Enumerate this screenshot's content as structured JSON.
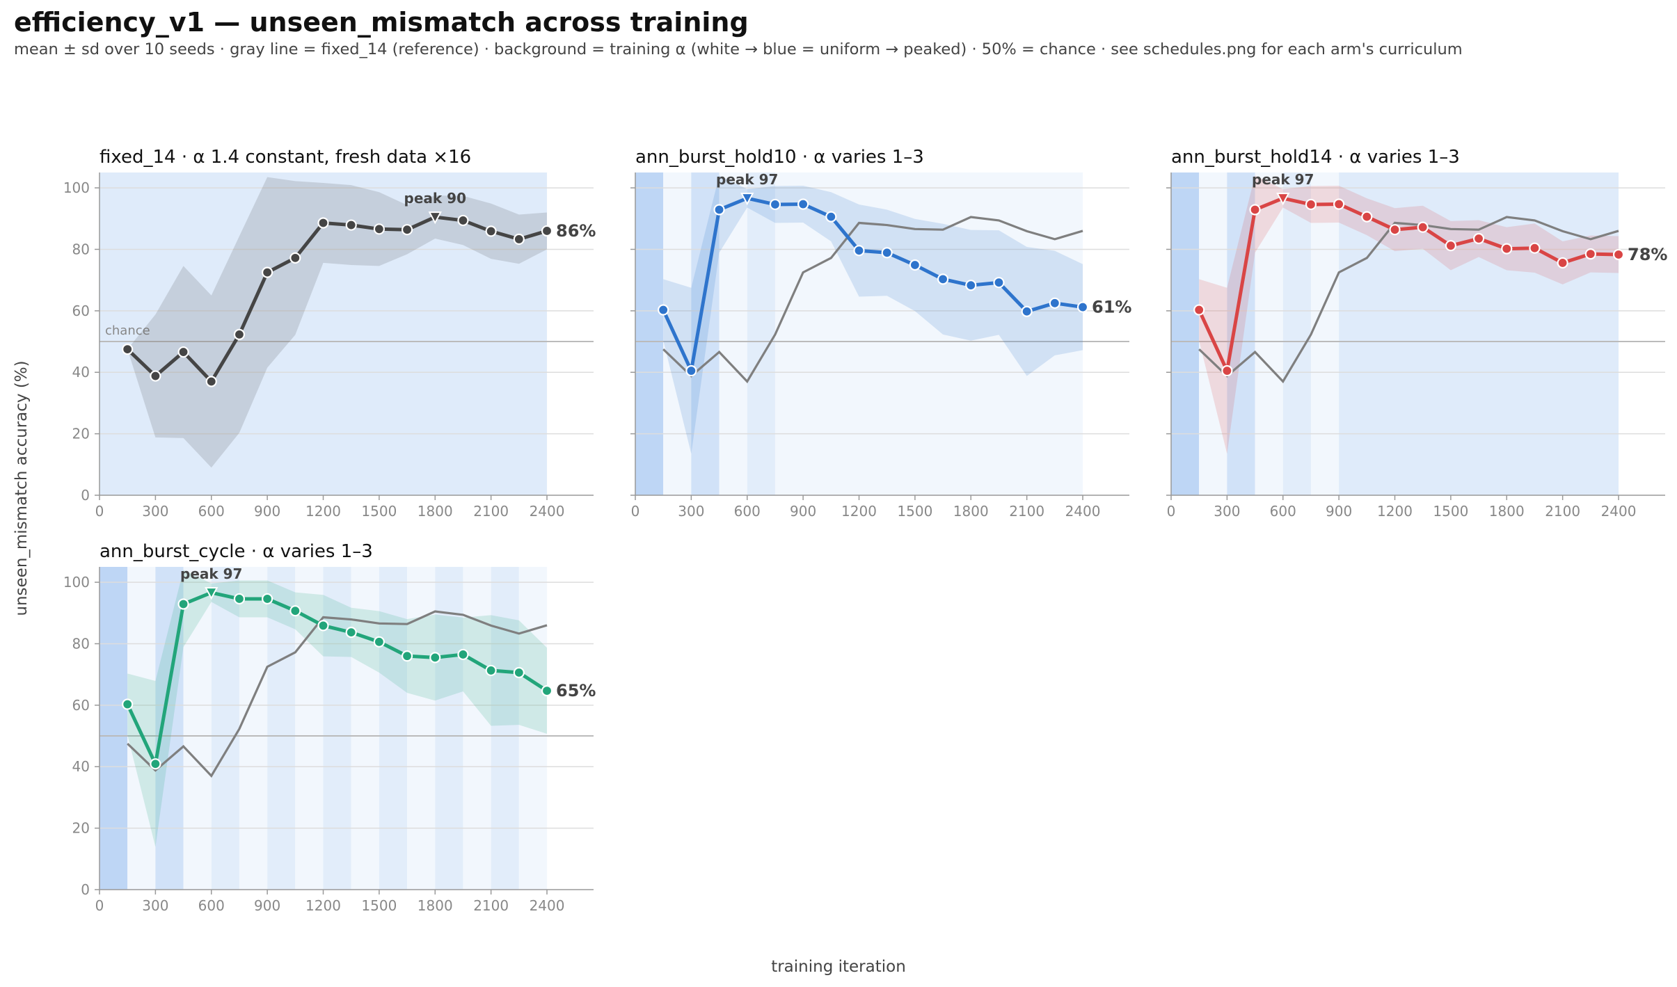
{
  "figure": {
    "title": "efficiency_v1 — unseen_mismatch across training",
    "subtitle": "mean ± sd over 10 seeds · gray line = fixed_14 (reference) · background = training α (white → blue = uniform → peaked) · 50% = chance · see schedules.png for each arm's curriculum",
    "xlabel": "training iteration",
    "ylabel": "unseen_mismatch accuracy (%)",
    "chance_label": "chance"
  },
  "colors": {
    "reference": "#7f7f7f",
    "fixed": "#454545",
    "hold10": "#2e74cc",
    "hold14": "#d94545",
    "cycle": "#22a57a",
    "grid": "#dddddd",
    "axis": "#999999",
    "tick_text": "#888888",
    "chance_line": "#bbbbbb"
  },
  "chart_data": [
    {
      "type": "line",
      "panel": "fixed_14",
      "title": "fixed_14   ·   α 1.4 constant, fresh data ×16",
      "x": [
        150,
        300,
        450,
        600,
        750,
        900,
        1050,
        1200,
        1350,
        1500,
        1650,
        1800,
        1950,
        2100,
        2250,
        2400
      ],
      "xticks": [
        0,
        300,
        600,
        900,
        1200,
        1500,
        1800,
        2100,
        2400
      ],
      "yticks": [
        0,
        20,
        40,
        60,
        80,
        100
      ],
      "xlim": [
        0,
        2650
      ],
      "ylim": [
        0,
        105
      ],
      "chance": 50,
      "series": [
        {
          "mean": [
            47.5,
            38.8,
            46.6,
            37.0,
            52.3,
            72.5,
            77.2,
            88.6,
            87.9,
            86.6,
            86.4,
            90.5,
            89.4,
            85.9,
            83.3,
            86.0
          ],
          "sd": [
            0,
            20,
            28,
            28,
            32,
            31,
            25,
            13,
            13,
            12,
            8,
            7,
            8,
            9,
            8,
            6
          ]
        }
      ],
      "reference": null,
      "peak_label": "peak 90",
      "final_label": "86%",
      "alpha_bands": [
        {
          "from": 0,
          "to": 2400,
          "level": 0.5
        }
      ]
    },
    {
      "type": "line",
      "panel": "ann_burst_hold10",
      "title": "ann_burst_hold10   ·   α varies 1–3",
      "x": [
        150,
        300,
        450,
        600,
        750,
        900,
        1050,
        1200,
        1350,
        1500,
        1650,
        1800,
        1950,
        2100,
        2250,
        2400
      ],
      "xticks": [
        0,
        300,
        600,
        900,
        1200,
        1500,
        1800,
        2100,
        2400
      ],
      "yticks": [
        0,
        20,
        40,
        60,
        80,
        100
      ],
      "xlim": [
        0,
        2650
      ],
      "ylim": [
        0,
        105
      ],
      "chance": 50,
      "series": [
        {
          "mean": [
            60.3,
            40.5,
            92.9,
            96.6,
            94.6,
            94.7,
            90.6,
            79.6,
            78.9,
            74.9,
            70.3,
            68.3,
            69.2,
            59.8,
            62.5,
            61.2
          ],
          "sd": [
            10,
            27,
            14,
            3,
            6,
            6,
            8,
            15,
            14,
            15,
            18,
            18,
            17,
            21,
            17,
            14
          ]
        }
      ],
      "reference": [
        47.5,
        38.8,
        46.6,
        37.0,
        52.3,
        72.5,
        77.2,
        88.6,
        87.9,
        86.6,
        86.4,
        90.5,
        89.4,
        85.9,
        83.3,
        86.0
      ],
      "peak_label": "peak 97",
      "final_label": "61%",
      "alpha_bands": [
        {
          "from": 0,
          "to": 150,
          "level": 1.0
        },
        {
          "from": 150,
          "to": 300,
          "level": 0.2
        },
        {
          "from": 300,
          "to": 450,
          "level": 0.7
        },
        {
          "from": 450,
          "to": 600,
          "level": 0.2
        },
        {
          "from": 600,
          "to": 750,
          "level": 0.45
        },
        {
          "from": 750,
          "to": 2400,
          "level": 0.2
        }
      ]
    },
    {
      "type": "line",
      "panel": "ann_burst_hold14",
      "title": "ann_burst_hold14   ·   α varies 1–3",
      "x": [
        150,
        300,
        450,
        600,
        750,
        900,
        1050,
        1200,
        1350,
        1500,
        1650,
        1800,
        1950,
        2100,
        2250,
        2400
      ],
      "xticks": [
        0,
        300,
        600,
        900,
        1200,
        1500,
        1800,
        2100,
        2400
      ],
      "yticks": [
        0,
        20,
        40,
        60,
        80,
        100
      ],
      "xlim": [
        0,
        2650
      ],
      "ylim": [
        0,
        105
      ],
      "chance": 50,
      "series": [
        {
          "mean": [
            60.3,
            40.5,
            92.9,
            96.6,
            94.6,
            94.7,
            90.6,
            86.4,
            87.2,
            81.2,
            83.5,
            80.2,
            80.4,
            75.6,
            78.5,
            78.3
          ],
          "sd": [
            10,
            27,
            14,
            3,
            6,
            6,
            6,
            7,
            7,
            8,
            6,
            7,
            8,
            7,
            6,
            6
          ]
        }
      ],
      "reference": [
        47.5,
        38.8,
        46.6,
        37.0,
        52.3,
        72.5,
        77.2,
        88.6,
        87.9,
        86.6,
        86.4,
        90.5,
        89.4,
        85.9,
        83.3,
        86.0
      ],
      "peak_label": "peak 97",
      "final_label": "78%",
      "alpha_bands": [
        {
          "from": 0,
          "to": 150,
          "level": 1.0
        },
        {
          "from": 150,
          "to": 300,
          "level": 0.2
        },
        {
          "from": 300,
          "to": 450,
          "level": 0.7
        },
        {
          "from": 450,
          "to": 600,
          "level": 0.2
        },
        {
          "from": 600,
          "to": 750,
          "level": 0.45
        },
        {
          "from": 750,
          "to": 900,
          "level": 0.2
        },
        {
          "from": 900,
          "to": 2400,
          "level": 0.5
        }
      ]
    },
    {
      "type": "line",
      "panel": "ann_burst_cycle",
      "title": "ann_burst_cycle   ·   α varies 1–3",
      "x": [
        150,
        300,
        450,
        600,
        750,
        900,
        1050,
        1200,
        1350,
        1500,
        1650,
        1800,
        1950,
        2100,
        2250,
        2400
      ],
      "xticks": [
        0,
        300,
        600,
        900,
        1200,
        1500,
        1800,
        2100,
        2400
      ],
      "yticks": [
        0,
        20,
        40,
        60,
        80,
        100
      ],
      "xlim": [
        0,
        2650
      ],
      "ylim": [
        0,
        105
      ],
      "chance": 50,
      "series": [
        {
          "mean": [
            60.3,
            40.9,
            92.9,
            96.6,
            94.6,
            94.6,
            90.7,
            85.9,
            83.7,
            80.6,
            76.0,
            75.5,
            76.5,
            71.3,
            70.6,
            64.7
          ],
          "sd": [
            10,
            27,
            14,
            3,
            6,
            6,
            6,
            10,
            8,
            10,
            12,
            14,
            12,
            18,
            17,
            14
          ]
        }
      ],
      "reference": [
        47.5,
        38.8,
        46.6,
        37.0,
        52.3,
        72.5,
        77.2,
        88.6,
        87.9,
        86.6,
        86.4,
        90.5,
        89.4,
        85.9,
        83.3,
        86.0
      ],
      "peak_label": "peak 97",
      "final_label": "65%",
      "alpha_bands": [
        {
          "from": 0,
          "to": 150,
          "level": 1.0
        },
        {
          "from": 150,
          "to": 300,
          "level": 0.2
        },
        {
          "from": 300,
          "to": 450,
          "level": 0.7
        },
        {
          "from": 450,
          "to": 600,
          "level": 0.2
        },
        {
          "from": 600,
          "to": 750,
          "level": 0.45
        },
        {
          "from": 750,
          "to": 900,
          "level": 0.2
        },
        {
          "from": 900,
          "to": 1050,
          "level": 0.45
        },
        {
          "from": 1050,
          "to": 1200,
          "level": 0.2
        },
        {
          "from": 1200,
          "to": 1350,
          "level": 0.45
        },
        {
          "from": 1350,
          "to": 1500,
          "level": 0.2
        },
        {
          "from": 1500,
          "to": 1650,
          "level": 0.45
        },
        {
          "from": 1650,
          "to": 1800,
          "level": 0.2
        },
        {
          "from": 1800,
          "to": 1950,
          "level": 0.45
        },
        {
          "from": 1950,
          "to": 2100,
          "level": 0.2
        },
        {
          "from": 2100,
          "to": 2250,
          "level": 0.45
        },
        {
          "from": 2250,
          "to": 2400,
          "level": 0.2
        }
      ]
    }
  ]
}
